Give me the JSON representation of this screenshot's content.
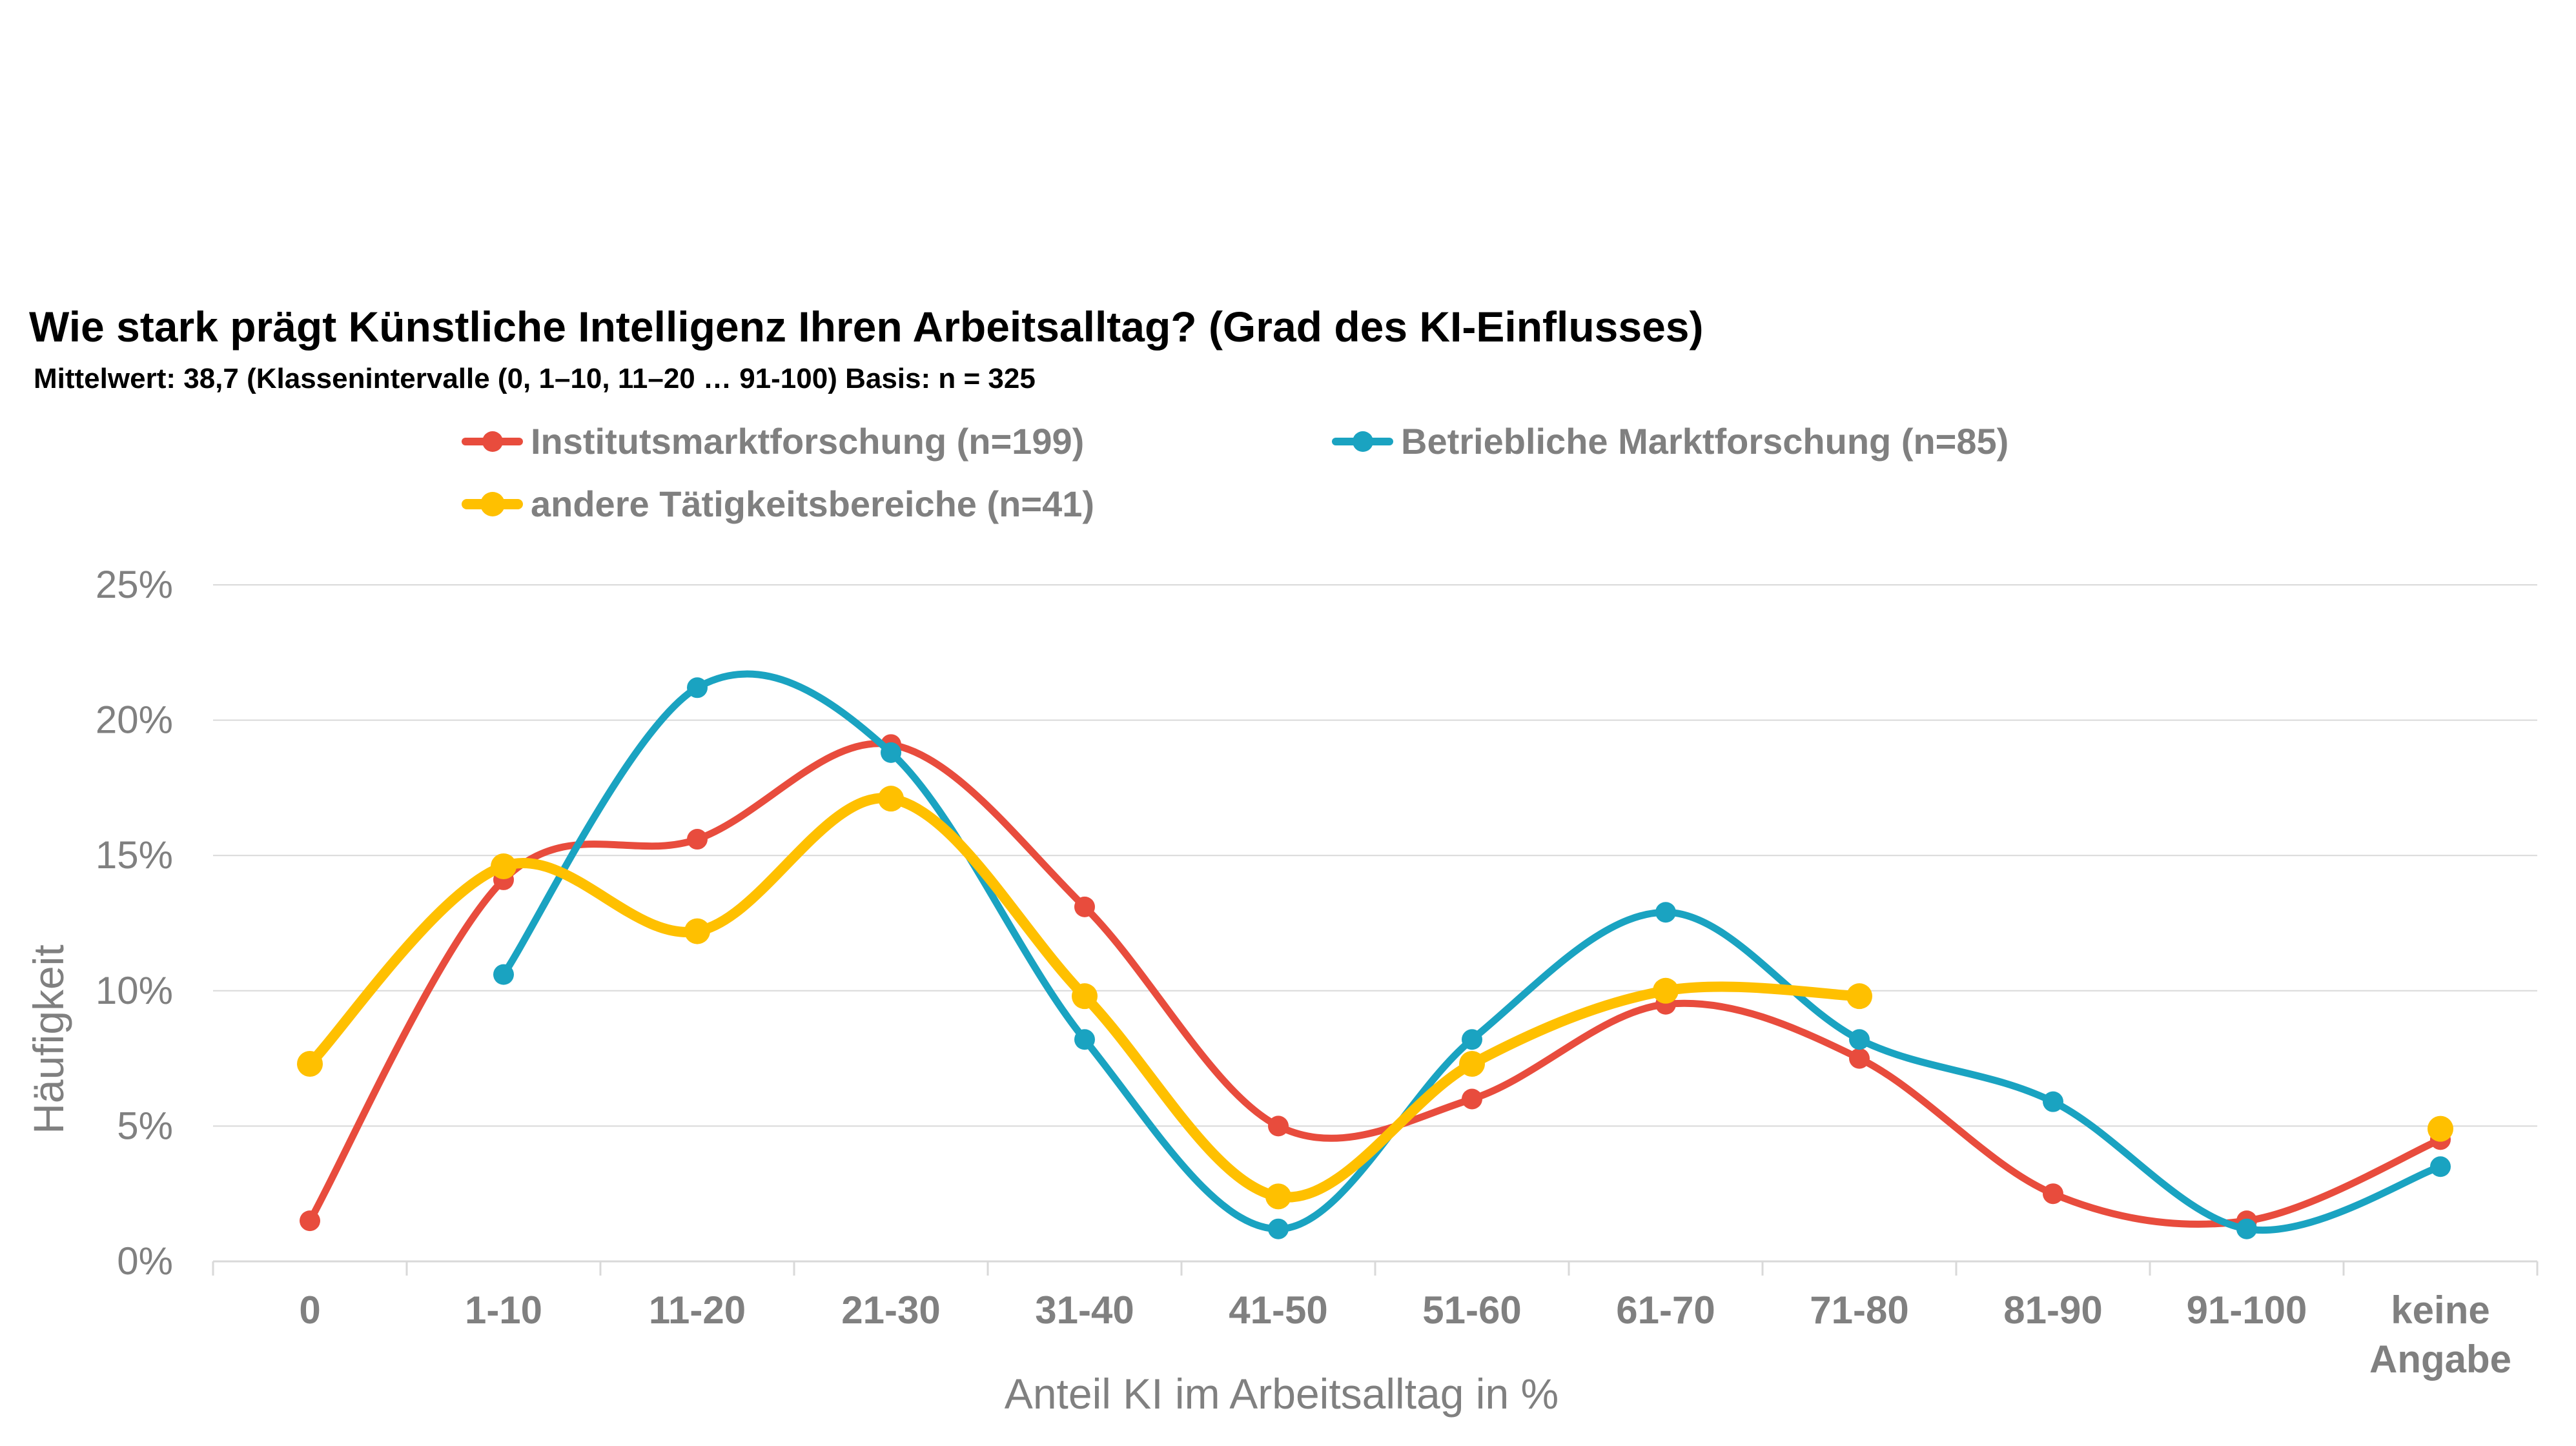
{
  "chart_data": {
    "type": "line",
    "title": "Wie stark prägt Künstliche Intelligenz Ihren Arbeitsalltag? (Grad des KI-Einflusses)",
    "subtitle": "Mittelwert: 38,7 (Klassenintervalle (0, 1–10, 11–20 … 91-100) Basis: n = 325",
    "xlabel": "Anteil KI im Arbeitsalltag in %",
    "ylabel": "Häufigkeit",
    "ylim": [
      0,
      25
    ],
    "yticks": [
      "0%",
      "5%",
      "10%",
      "15%",
      "20%",
      "25%"
    ],
    "yticks_values": [
      0,
      5,
      10,
      15,
      20,
      25
    ],
    "categories": [
      "0",
      "1-10",
      "11-20",
      "21-30",
      "31-40",
      "41-50",
      "51-60",
      "61-70",
      "71-80",
      "81-90",
      "91-100",
      [
        "keine",
        "Angabe"
      ]
    ],
    "series": [
      {
        "name": "Institutsmarktforschung (n=199)",
        "color": "#e84c3d",
        "values": [
          1.5,
          14.1,
          15.6,
          19.1,
          13.1,
          5.0,
          6.0,
          9.5,
          7.5,
          2.5,
          1.5,
          4.5
        ]
      },
      {
        "name": "Betriebliche Marktforschung (n=85)",
        "color": "#1aa3c1",
        "values": [
          null,
          10.6,
          21.2,
          18.8,
          8.2,
          1.2,
          8.2,
          12.9,
          8.2,
          5.9,
          1.2,
          3.5
        ]
      },
      {
        "name": "andere Tätigkeitsbereiche (n=41)",
        "color": "#ffc000",
        "values": [
          7.3,
          14.6,
          12.2,
          17.1,
          9.8,
          2.4,
          7.3,
          10.0,
          9.8,
          null,
          null,
          4.9
        ]
      }
    ],
    "legend_position": "top",
    "grid": true
  }
}
